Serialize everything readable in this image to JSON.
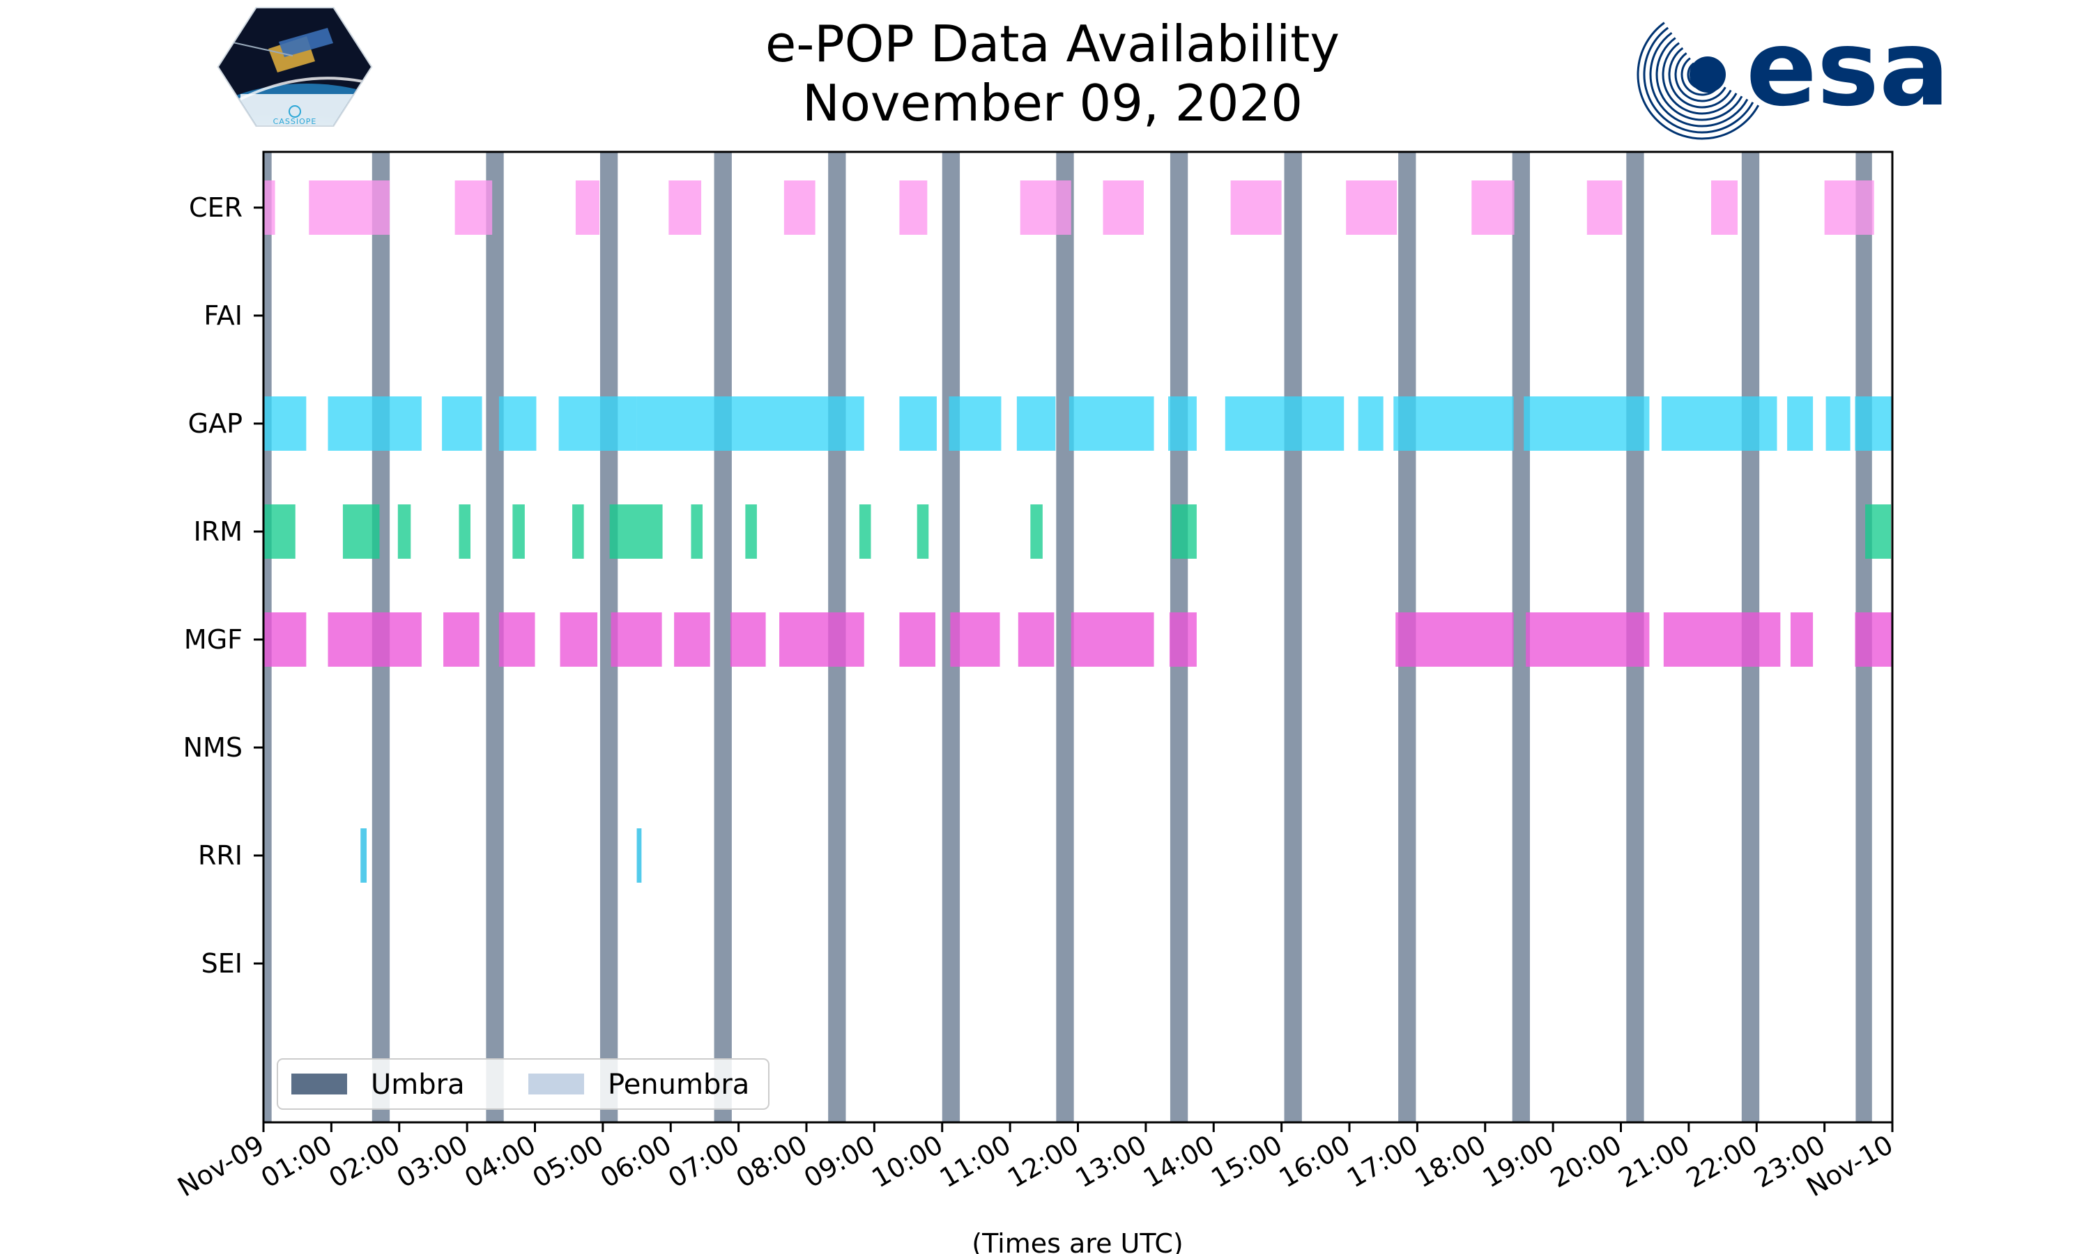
{
  "header": {
    "title_line1": "e-POP Data Availability",
    "title_line2": "November 09, 2020"
  },
  "logos": {
    "mission_caption": "CASSIOPE",
    "agency_wordmark": "esa"
  },
  "colors": {
    "umbra": "#5b6f88",
    "penumbra": "#c5d3e5",
    "CER": "#fc96ee",
    "GAP": "#38d6f8",
    "IRM": "#17cc8e",
    "MGF": "#ec55d9",
    "RRI": "#22bde6",
    "esa_blue": "#003371"
  },
  "chart_data": {
    "type": "timeline",
    "title": "e-POP Data Availability November 09, 2020",
    "xlabel": "(Times are UTC)",
    "x_unit": "hours UTC",
    "xlim": [
      0,
      24
    ],
    "x_tick_values": [
      0,
      1,
      2,
      3,
      4,
      5,
      6,
      7,
      8,
      9,
      10,
      11,
      12,
      13,
      14,
      15,
      16,
      17,
      18,
      19,
      20,
      21,
      22,
      23,
      24
    ],
    "x_tick_labels": [
      "Nov-09",
      "01:00",
      "02:00",
      "03:00",
      "04:00",
      "05:00",
      "06:00",
      "07:00",
      "08:00",
      "09:00",
      "10:00",
      "11:00",
      "12:00",
      "13:00",
      "14:00",
      "15:00",
      "16:00",
      "17:00",
      "18:00",
      "19:00",
      "20:00",
      "21:00",
      "22:00",
      "23:00",
      "Nov-10"
    ],
    "instruments": [
      "CER",
      "FAI",
      "GAP",
      "IRM",
      "MGF",
      "NMS",
      "RRI",
      "SEI"
    ],
    "umbra_intervals": [
      [
        0.0,
        0.12
      ],
      [
        1.6,
        1.86
      ],
      [
        3.28,
        3.54
      ],
      [
        4.96,
        5.22
      ],
      [
        6.64,
        6.9
      ],
      [
        8.32,
        8.58
      ],
      [
        10.0,
        10.26
      ],
      [
        11.68,
        11.94
      ],
      [
        13.36,
        13.62
      ],
      [
        15.04,
        15.3
      ],
      [
        16.72,
        16.98
      ],
      [
        18.4,
        18.66
      ],
      [
        20.08,
        20.34
      ],
      [
        21.78,
        22.04
      ],
      [
        23.46,
        23.7
      ]
    ],
    "series": [
      {
        "name": "CER",
        "intervals": [
          [
            0.0,
            0.17
          ],
          [
            0.67,
            1.86
          ],
          [
            2.82,
            3.37
          ],
          [
            4.6,
            4.95
          ],
          [
            5.97,
            6.45
          ],
          [
            7.67,
            8.13
          ],
          [
            9.37,
            9.78
          ],
          [
            11.15,
            11.9
          ],
          [
            12.37,
            12.97
          ],
          [
            14.25,
            15.0
          ],
          [
            15.95,
            16.7
          ],
          [
            17.8,
            18.43
          ],
          [
            19.5,
            20.02
          ],
          [
            21.33,
            21.72
          ],
          [
            23.0,
            23.73
          ]
        ]
      },
      {
        "name": "FAI",
        "intervals": []
      },
      {
        "name": "GAP",
        "intervals": [
          [
            0.0,
            0.63
          ],
          [
            0.95,
            2.33
          ],
          [
            2.63,
            3.22
          ],
          [
            3.47,
            4.02
          ],
          [
            4.35,
            5.5
          ],
          [
            5.5,
            8.85
          ],
          [
            9.37,
            9.92
          ],
          [
            10.1,
            10.87
          ],
          [
            11.1,
            11.67
          ],
          [
            11.87,
            13.12
          ],
          [
            13.33,
            13.75
          ],
          [
            14.17,
            15.92
          ],
          [
            16.13,
            16.5
          ],
          [
            16.65,
            18.42
          ],
          [
            18.57,
            20.42
          ],
          [
            20.6,
            22.3
          ],
          [
            22.45,
            22.83
          ],
          [
            23.02,
            23.38
          ],
          [
            23.45,
            24.0
          ]
        ]
      },
      {
        "name": "IRM",
        "intervals": [
          [
            0.0,
            0.47
          ],
          [
            1.17,
            1.71
          ],
          [
            1.98,
            2.17
          ],
          [
            2.88,
            3.05
          ],
          [
            3.67,
            3.85
          ],
          [
            4.55,
            4.72
          ],
          [
            5.1,
            5.88
          ],
          [
            6.3,
            6.47
          ],
          [
            7.1,
            7.27
          ],
          [
            8.78,
            8.95
          ],
          [
            9.63,
            9.8
          ],
          [
            11.3,
            11.48
          ],
          [
            13.38,
            13.75
          ],
          [
            23.6,
            23.98
          ]
        ]
      },
      {
        "name": "MGF",
        "intervals": [
          [
            0.0,
            0.63
          ],
          [
            0.95,
            2.33
          ],
          [
            2.65,
            3.18
          ],
          [
            3.47,
            4.0
          ],
          [
            4.37,
            4.92
          ],
          [
            5.12,
            5.87
          ],
          [
            6.05,
            6.58
          ],
          [
            6.88,
            7.4
          ],
          [
            7.6,
            8.85
          ],
          [
            9.37,
            9.9
          ],
          [
            10.12,
            10.85
          ],
          [
            11.12,
            11.65
          ],
          [
            11.9,
            13.12
          ],
          [
            13.35,
            13.75
          ],
          [
            16.68,
            18.42
          ],
          [
            18.6,
            20.42
          ],
          [
            20.63,
            22.35
          ],
          [
            22.5,
            22.83
          ],
          [
            23.45,
            24.0
          ]
        ]
      },
      {
        "name": "NMS",
        "intervals": []
      },
      {
        "name": "RRI",
        "intervals": [
          [
            1.43,
            1.52
          ],
          [
            5.5,
            5.57
          ]
        ]
      },
      {
        "name": "SEI",
        "intervals": []
      }
    ],
    "legend": {
      "placement": "bottom-left",
      "entries": [
        {
          "key": "umbra",
          "label": "Umbra"
        },
        {
          "key": "penumbra",
          "label": "Penumbra"
        }
      ]
    }
  }
}
